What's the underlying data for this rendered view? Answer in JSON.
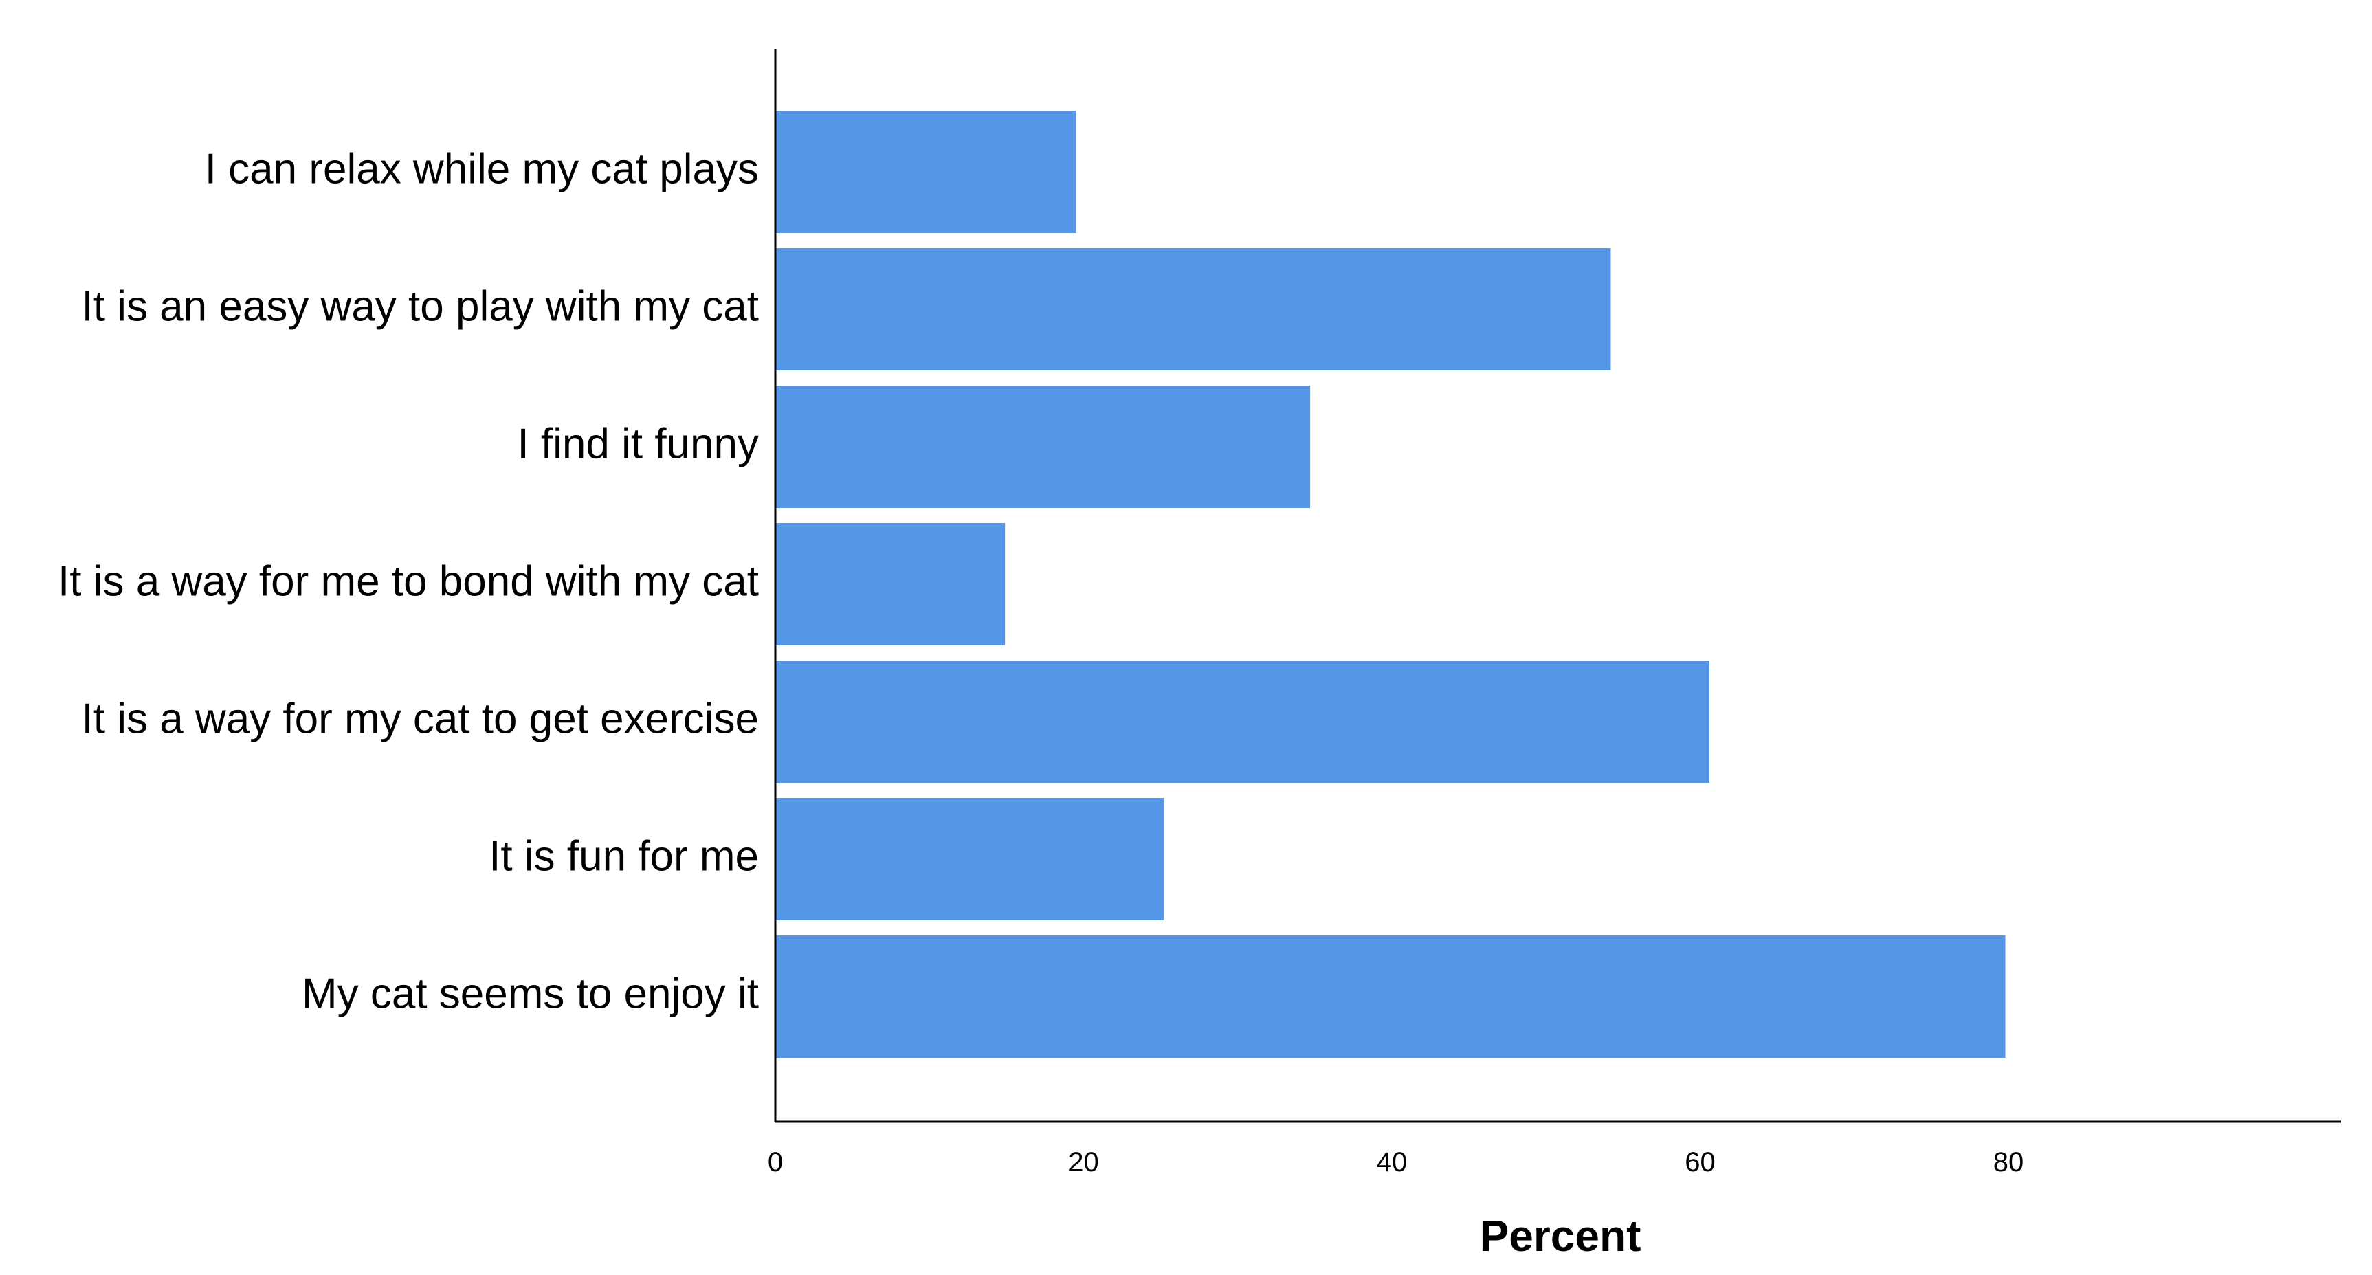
{
  "chart_data": {
    "type": "bar",
    "orientation": "horizontal",
    "categories": [
      "I can relax while my cat plays",
      "It is an easy way to play with my cat",
      "I find it funny",
      "It is a way for me to bond with my cat",
      "It is a way for my cat to get exercise",
      "It is fun for me",
      "My cat seems to enjoy it"
    ],
    "values": [
      19.5,
      54.2,
      34.7,
      14.9,
      60.6,
      25.2,
      79.8
    ],
    "xlabel": "Percent",
    "ylabel": "",
    "xlim": [
      0,
      89
    ],
    "xticks": [
      0,
      20,
      40,
      60,
      80
    ],
    "grid": false,
    "bar_color": "#5596E6",
    "axis_color": "#000000"
  }
}
